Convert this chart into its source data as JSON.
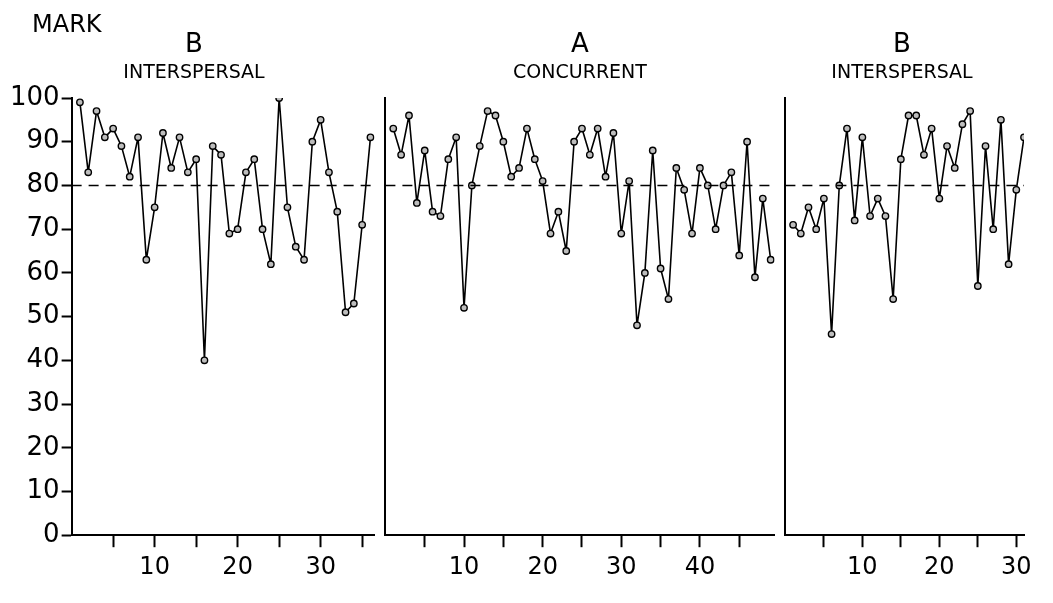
{
  "chart_data": [
    {
      "type": "line",
      "title": "B",
      "subtitle": "INTERSPERSAL",
      "ylabel": "MARK",
      "marker": "circle",
      "line_style": "solid",
      "grid": false,
      "x": [
        1,
        2,
        3,
        4,
        5,
        6,
        7,
        8,
        9,
        10,
        11,
        12,
        13,
        14,
        15,
        16,
        17,
        18,
        19,
        20,
        21,
        22,
        23,
        24,
        25,
        26,
        27,
        28,
        29,
        30,
        31,
        32,
        33,
        34,
        35,
        36
      ],
      "series": [
        {
          "color": "#000000",
          "values": [
            99,
            83,
            97,
            91,
            93,
            89,
            82,
            91,
            63,
            75,
            92,
            84,
            91,
            83,
            86,
            40,
            89,
            87,
            69,
            70,
            83,
            86,
            70,
            62,
            100,
            75,
            66,
            63,
            90,
            95,
            83,
            74,
            51,
            53,
            71,
            91
          ]
        }
      ],
      "xlim": [
        0,
        36.5
      ],
      "xticks": [
        {
          "value": 5,
          "label": null
        },
        10,
        {
          "value": 15,
          "label": null
        },
        20,
        {
          "value": 25,
          "label": null
        },
        30,
        {
          "value": 35,
          "label": null
        }
      ],
      "ylim": [
        0,
        100
      ],
      "yticks": [
        0,
        10,
        20,
        30,
        40,
        50,
        60,
        70,
        80,
        90,
        100
      ],
      "ref_lines": [
        {
          "axis": "y",
          "value": 80,
          "line_style": "dashed"
        }
      ]
    },
    {
      "type": "line",
      "title": "A",
      "subtitle": "CONCURRENT",
      "marker": "circle",
      "line_style": "solid",
      "grid": false,
      "tick_labels": "x",
      "x": [
        1,
        2,
        3,
        4,
        5,
        6,
        7,
        8,
        9,
        10,
        11,
        12,
        13,
        14,
        15,
        16,
        17,
        18,
        19,
        20,
        21,
        22,
        23,
        24,
        25,
        26,
        27,
        28,
        29,
        30,
        31,
        32,
        33,
        34,
        35,
        36,
        37,
        38,
        39,
        40,
        41,
        42,
        43,
        44,
        45,
        46,
        47,
        48,
        49
      ],
      "series": [
        {
          "color": "#000000",
          "values": [
            93,
            87,
            96,
            76,
            88,
            74,
            73,
            86,
            91,
            52,
            80,
            89,
            97,
            96,
            90,
            82,
            84,
            93,
            86,
            81,
            69,
            74,
            65,
            90,
            93,
            87,
            93,
            82,
            92,
            69,
            81,
            48,
            60,
            88,
            61,
            54,
            84,
            79,
            69,
            84,
            80,
            70,
            80,
            83,
            64,
            90,
            59,
            77,
            63
          ]
        }
      ],
      "xlim": [
        0,
        49.5
      ],
      "xticks": [
        {
          "value": 5,
          "label": null
        },
        10,
        {
          "value": 15,
          "label": null
        },
        20,
        {
          "value": 25,
          "label": null
        },
        30,
        {
          "value": 35,
          "label": null
        },
        40,
        {
          "value": 45,
          "label": null
        }
      ],
      "ylim": [
        0,
        100
      ],
      "yticks": [
        0,
        10,
        20,
        30,
        40,
        50,
        60,
        70,
        80,
        90,
        100
      ],
      "ref_lines": [
        {
          "axis": "y",
          "value": 80,
          "line_style": "dashed"
        }
      ]
    },
    {
      "type": "line",
      "title": "B",
      "subtitle": "INTERSPERSAL",
      "marker": "circle",
      "line_style": "solid",
      "grid": false,
      "tick_labels": "x",
      "x": [
        1,
        2,
        3,
        4,
        5,
        6,
        7,
        8,
        9,
        10,
        11,
        12,
        13,
        14,
        15,
        16,
        17,
        18,
        19,
        20,
        21,
        22,
        23,
        24,
        25,
        26,
        27,
        28,
        29,
        30,
        31
      ],
      "series": [
        {
          "color": "#000000",
          "values": [
            71,
            69,
            75,
            70,
            77,
            46,
            80,
            93,
            72,
            91,
            73,
            77,
            73,
            54,
            86,
            96,
            96,
            87,
            93,
            77,
            89,
            84,
            94,
            97,
            57,
            89,
            70,
            95,
            62,
            79,
            91
          ]
        }
      ],
      "xlim": [
        0,
        31
      ],
      "xticks": [
        {
          "value": 5,
          "label": null
        },
        10,
        {
          "value": 15,
          "label": null
        },
        20,
        {
          "value": 25,
          "label": null
        },
        30
      ],
      "ylim": [
        0,
        100
      ],
      "yticks": [
        0,
        10,
        20,
        30,
        40,
        50,
        60,
        70,
        80,
        90,
        100
      ],
      "ref_lines": [
        {
          "axis": "y",
          "value": 80,
          "line_style": "dashed"
        }
      ]
    }
  ]
}
